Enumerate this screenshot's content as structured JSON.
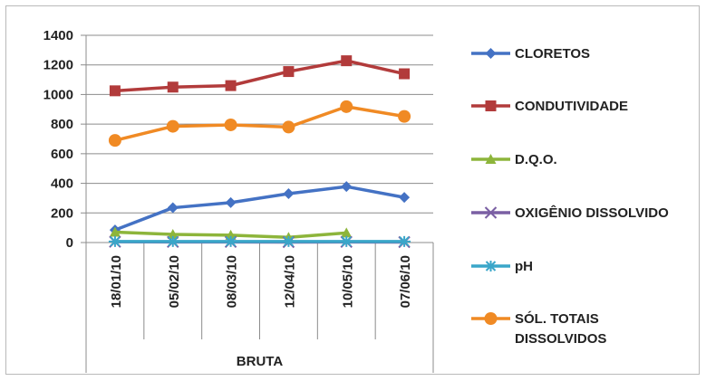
{
  "chart_data": {
    "type": "line",
    "categories": [
      "18/01/10",
      "05/02/10",
      "08/03/10",
      "12/04/10",
      "10/05/10",
      "07/06/10"
    ],
    "category_group": "BRUTA",
    "ylim": [
      0,
      1400
    ],
    "yticks": [
      "1400",
      "1200",
      "1000",
      "800",
      "600",
      "400",
      "200",
      "0"
    ],
    "grid": true,
    "legend_position": "right",
    "series": [
      {
        "name": "CLORETOS",
        "color": "#4472c4",
        "marker": "diamond",
        "values": [
          85,
          235,
          270,
          330,
          378,
          305
        ]
      },
      {
        "name": "CONDUTIVIDADE",
        "color": "#b23b3b",
        "marker": "square",
        "values": [
          1025,
          1050,
          1060,
          1155,
          1228,
          1140
        ]
      },
      {
        "name": "D.Q.O.",
        "color": "#8db53b",
        "marker": "triangle",
        "values": [
          70,
          55,
          50,
          35,
          65,
          null
        ]
      },
      {
        "name": "OXIGÊNIO DISSOLVIDO",
        "color": "#7a5fa3",
        "marker": "x",
        "values": [
          5,
          4,
          4,
          3,
          4,
          3
        ]
      },
      {
        "name": "pH",
        "color": "#3aa6c9",
        "marker": "star",
        "values": [
          7,
          7,
          7,
          7,
          7,
          7
        ]
      },
      {
        "name": "SÓL. TOTAIS DISSOLVIDOS",
        "color": "#f08a24",
        "marker": "circle",
        "values": [
          690,
          785,
          795,
          780,
          918,
          852
        ]
      }
    ]
  }
}
